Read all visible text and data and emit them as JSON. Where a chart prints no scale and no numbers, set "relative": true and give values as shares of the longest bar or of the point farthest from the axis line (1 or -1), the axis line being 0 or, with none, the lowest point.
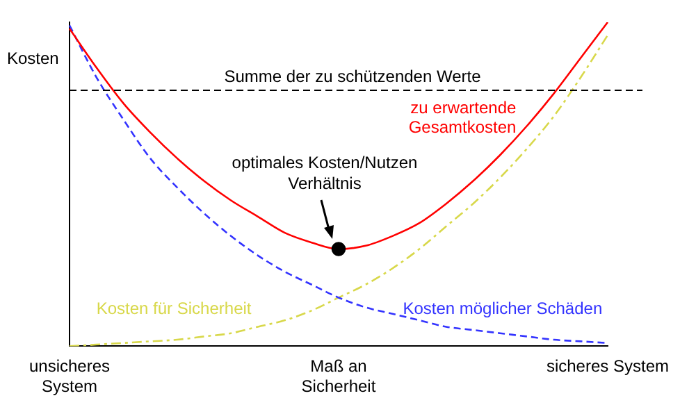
{
  "chart_data": {
    "type": "line",
    "relative": true,
    "ylabel": "Kosten",
    "legend": false,
    "grid": false,
    "marker": "none",
    "categories": [
      "unsicheres\nSystem",
      null,
      null,
      null,
      null,
      null,
      null,
      null,
      null,
      null,
      "Maß an\nSicherheit",
      null,
      null,
      null,
      null,
      null,
      null,
      null,
      null,
      null,
      "sicheres System"
    ],
    "series": [
      {
        "name": "zu erwartende\nGesamtkosten",
        "color": "#ff0000",
        "line_style": "solid",
        "values": [
          0.98,
          0.86,
          0.75,
          0.66,
          0.58,
          0.51,
          0.45,
          0.4,
          0.35,
          0.32,
          0.3,
          0.31,
          0.34,
          0.38,
          0.44,
          0.51,
          0.59,
          0.68,
          0.78,
          0.89,
          1.0
        ]
      },
      {
        "name": "Kosten möglicher Schäden",
        "color": "#3333ff",
        "line_style": "dashed",
        "values": [
          0.99,
          0.83,
          0.7,
          0.58,
          0.49,
          0.41,
          0.34,
          0.28,
          0.23,
          0.19,
          0.15,
          0.12,
          0.1,
          0.08,
          0.06,
          0.05,
          0.04,
          0.03,
          0.02,
          0.015,
          0.01
        ]
      },
      {
        "name": "Kosten für Sicherheit",
        "color": "#d8d84a",
        "line_style": "dashed",
        "values": [
          0.0,
          0.005,
          0.01,
          0.015,
          0.02,
          0.03,
          0.04,
          0.06,
          0.08,
          0.11,
          0.15,
          0.19,
          0.24,
          0.3,
          0.37,
          0.44,
          0.52,
          0.61,
          0.71,
          0.83,
          0.96
        ]
      },
      {
        "type": "scatter",
        "color": "#000000",
        "marker": "circle",
        "values": [
          null,
          null,
          null,
          null,
          null,
          null,
          null,
          null,
          null,
          null,
          0.3,
          null,
          null,
          null,
          null,
          null,
          null,
          null,
          null,
          null,
          null
        ]
      }
    ],
    "ref_lines": [
      {
        "axis": "y",
        "value": 0.79,
        "label": "Summe der zu schützenden Werte",
        "color": "#000000",
        "line_style": "dashed"
      }
    ],
    "annotations": [
      "optimales Kosten/Nutzen\nVerhältnis"
    ]
  }
}
